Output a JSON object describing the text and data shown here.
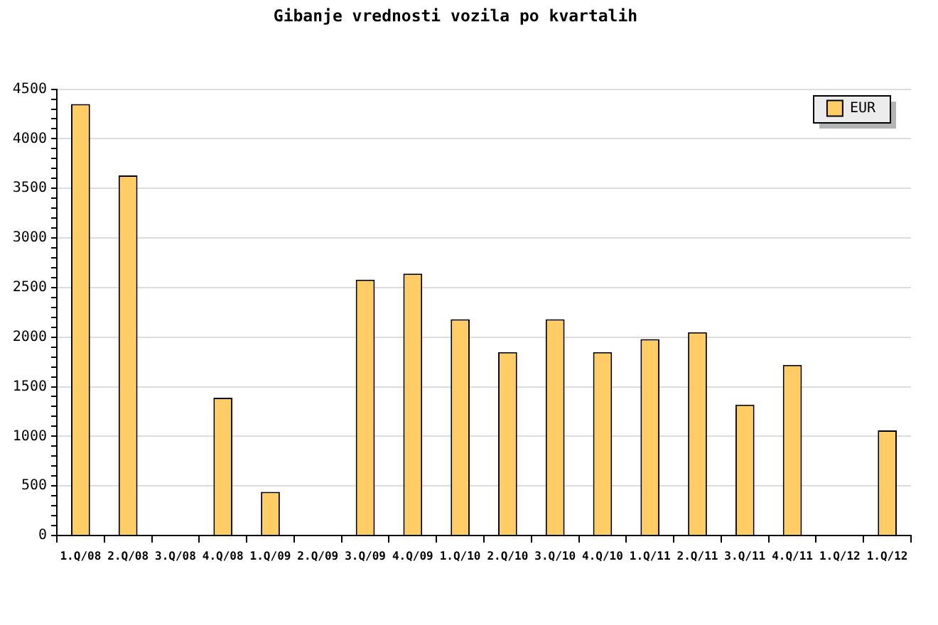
{
  "chart_data": {
    "type": "bar",
    "title": "Gibanje vrednosti vozila po kvartalih",
    "categories": [
      "1.Q/08",
      "2.Q/08",
      "3.Q/08",
      "4.Q/08",
      "1.Q/09",
      "2.Q/09",
      "3.Q/09",
      "4.Q/09",
      "1.Q/10",
      "2.Q/10",
      "3.Q/10",
      "4.Q/10",
      "1.Q/11",
      "2.Q/11",
      "3.Q/11",
      "4.Q/11",
      "1.Q/12",
      "1.Q/12"
    ],
    "series": [
      {
        "name": "EUR",
        "color": "#ffcc66",
        "values": [
          4350,
          3630,
          null,
          1390,
          440,
          null,
          2580,
          2640,
          2180,
          1850,
          2180,
          1850,
          1980,
          2050,
          1320,
          1720,
          null,
          1060
        ]
      }
    ],
    "ylim": [
      0,
      4500
    ],
    "yticks": [
      0,
      {
        "value": 100,
        "label": null
      },
      {
        "value": 200,
        "label": null
      },
      {
        "value": 300,
        "label": null
      },
      {
        "value": 400,
        "label": null
      },
      500,
      {
        "value": 600,
        "label": null
      },
      {
        "value": 700,
        "label": null
      },
      {
        "value": 800,
        "label": null
      },
      {
        "value": 900,
        "label": null
      },
      1000,
      {
        "value": 1100,
        "label": null
      },
      {
        "value": 1200,
        "label": null
      },
      {
        "value": 1300,
        "label": null
      },
      {
        "value": 1400,
        "label": null
      },
      1500,
      {
        "value": 1600,
        "label": null
      },
      {
        "value": 1700,
        "label": null
      },
      {
        "value": 1800,
        "label": null
      },
      {
        "value": 1900,
        "label": null
      },
      2000,
      {
        "value": 2100,
        "label": null
      },
      {
        "value": 2200,
        "label": null
      },
      {
        "value": 2300,
        "label": null
      },
      {
        "value": 2400,
        "label": null
      },
      2500,
      {
        "value": 2600,
        "label": null
      },
      {
        "value": 2700,
        "label": null
      },
      {
        "value": 2800,
        "label": null
      },
      {
        "value": 2900,
        "label": null
      },
      3000,
      {
        "value": 3100,
        "label": null
      },
      {
        "value": 3200,
        "label": null
      },
      {
        "value": 3300,
        "label": null
      },
      {
        "value": 3400,
        "label": null
      },
      3500,
      {
        "value": 3600,
        "label": null
      },
      {
        "value": 3700,
        "label": null
      },
      {
        "value": 3800,
        "label": null
      },
      {
        "value": 3900,
        "label": null
      },
      4000,
      {
        "value": 4100,
        "label": null
      },
      {
        "value": 4200,
        "label": null
      },
      {
        "value": 4300,
        "label": null
      },
      {
        "value": 4400,
        "label": null
      },
      4500
    ],
    "grid": "y",
    "legend": "top right"
  }
}
